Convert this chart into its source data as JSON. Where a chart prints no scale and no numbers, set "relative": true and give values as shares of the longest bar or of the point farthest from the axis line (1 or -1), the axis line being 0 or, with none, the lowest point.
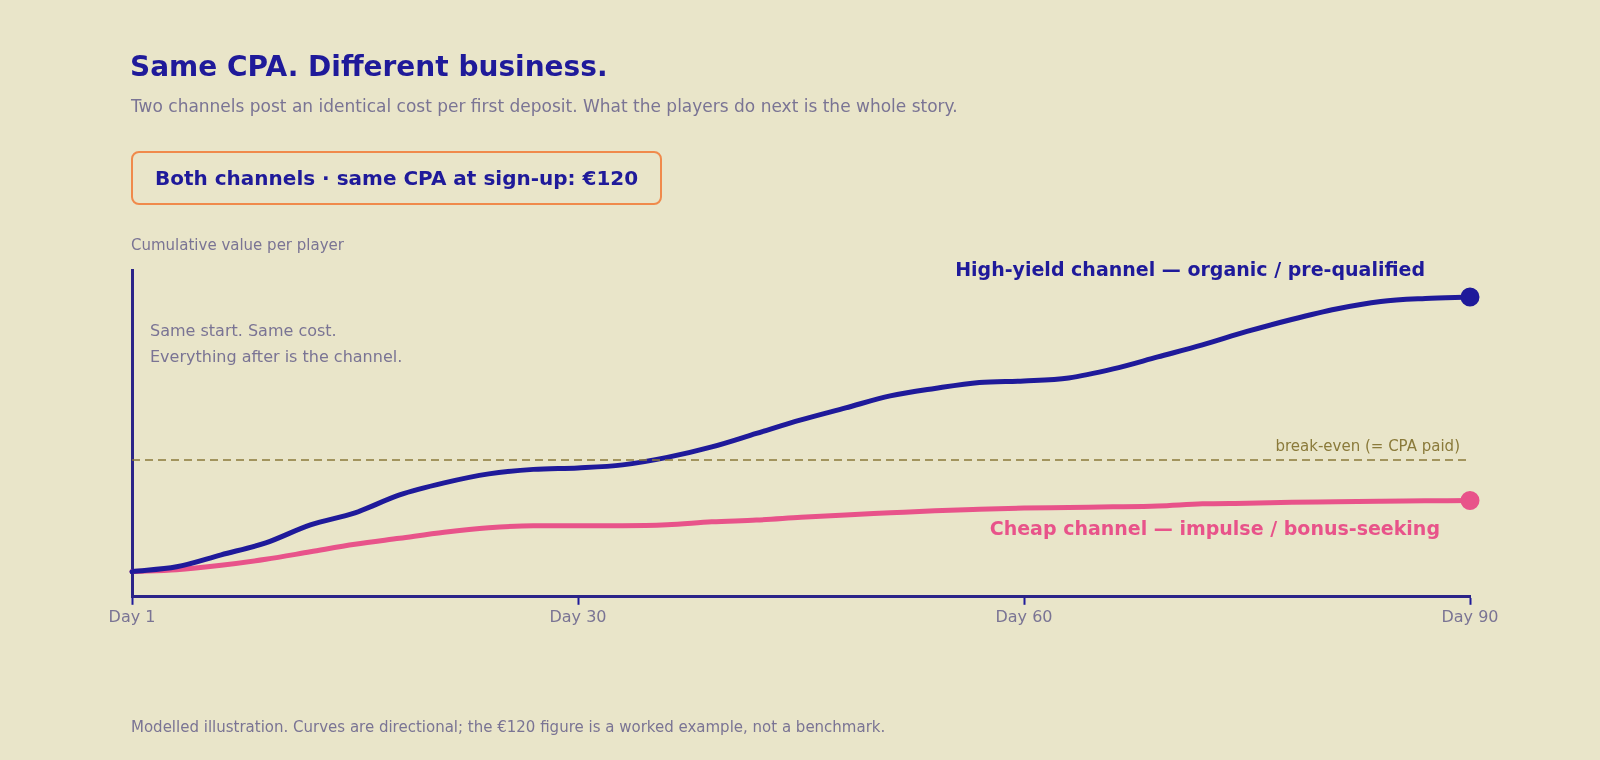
{
  "chart_data": {
    "type": "line",
    "title": "Same CPA. Different business.",
    "subtitle": "Two channels post an identical cost per first deposit. What the players do next is the whole story.",
    "ylabel": "Cumulative value per player",
    "relative": true,
    "categories": [
      "Day 1",
      null,
      null,
      null,
      null,
      null,
      null,
      null,
      null,
      null,
      "Day 30",
      null,
      null,
      null,
      null,
      null,
      null,
      null,
      null,
      null,
      "Day 60",
      null,
      null,
      null,
      null,
      null,
      null,
      null,
      null,
      null,
      "Day 90"
    ],
    "series": [
      {
        "name": "High-yield channel — organic / pre-qualified",
        "color": "#1f1a9a",
        "values": [
          0.084,
          0.1,
          0.14,
          0.18,
          0.24,
          0.28,
          0.34,
          0.38,
          0.41,
          0.425,
          0.43,
          0.44,
          0.465,
          0.5,
          0.545,
          0.59,
          0.63,
          0.67,
          0.695,
          0.715,
          0.72,
          0.73,
          0.76,
          0.8,
          0.84,
          0.885,
          0.925,
          0.96,
          0.985,
          0.995,
          1.0
        ]
      },
      {
        "name": "Cheap channel — impulse / bonus-seeking",
        "color": "#e8538a",
        "values": [
          0.084,
          0.09,
          0.105,
          0.125,
          0.15,
          0.175,
          0.195,
          0.215,
          0.23,
          0.237,
          0.237,
          0.237,
          0.24,
          0.25,
          0.256,
          0.265,
          0.273,
          0.28,
          0.287,
          0.292,
          0.296,
          0.298,
          0.3,
          0.303,
          0.31,
          0.312,
          0.315,
          0.317,
          0.319,
          0.32,
          0.321
        ]
      }
    ],
    "ref_lines": [
      {
        "axis": "y",
        "value": 0.456,
        "label": "break-even (= CPA paid)",
        "color": "#8a7a3a",
        "line_style": "dashed"
      }
    ],
    "annotations": [
      "Both channels · same CPA at sign-up: €120",
      "Same start. Same cost.\nEverything after is the channel.",
      "Modelled illustration. Curves are directional; the €120 figure is a worked example, not a benchmark."
    ],
    "line_style": "solid",
    "grid": false,
    "legend": false
  }
}
